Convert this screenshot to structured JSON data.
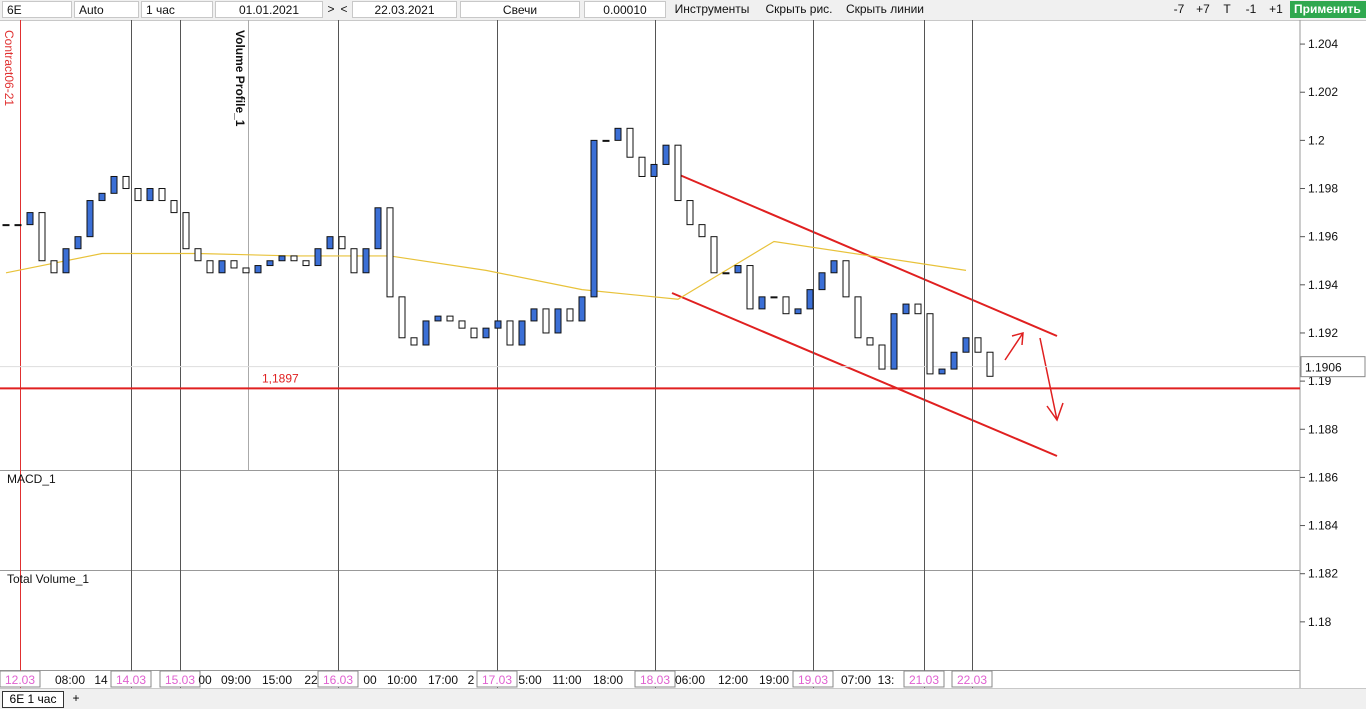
{
  "toolbar": {
    "symbol": "6E",
    "scale": "Auto",
    "timeframe": "1 час",
    "date_from": "01.01.2021",
    "date_to": "22.03.2021",
    "chart_style": "Свечи",
    "tick_size": "0.00010",
    "tools": "Инструменты",
    "hide_drawings": "Скрыть рис.",
    "hide_lines": "Скрыть линии",
    "minus7": "-7",
    "plus7": "+7",
    "t": "T",
    "minus1": "-1",
    "plus1": "+1",
    "apply": "Применить"
  },
  "tabs": {
    "active": "6E 1 час",
    "add": "+"
  },
  "panels": {
    "contract": "Contract06-21",
    "volume_profile": "Volume Profile_1",
    "macd": "MACD_1",
    "total_volume": "Total Volume_1"
  },
  "chart_data": {
    "type": "candlestick",
    "up_color": "#3b6fd6",
    "down_color": "#ffffff",
    "open": [
      1.1965,
      1.1965,
      1.1965,
      1.197,
      1.195,
      1.1945,
      1.1955,
      1.196,
      1.1975,
      1.1978,
      1.1985,
      1.198,
      1.1975,
      1.198,
      1.1975,
      1.197,
      1.1955,
      1.195,
      1.1945,
      1.195,
      1.1947,
      1.1945,
      1.1948,
      1.195,
      1.1952,
      1.195,
      1.1948,
      1.1955,
      1.196,
      1.1955,
      1.1945,
      1.1955,
      1.1972,
      1.1935,
      1.1918,
      1.1915,
      1.1925,
      1.1927,
      1.1925,
      1.1922,
      1.1918,
      1.1922,
      1.1925,
      1.1915,
      1.1925,
      1.193,
      1.192,
      1.193,
      1.1925,
      1.1935,
      1.2,
      1.2,
      1.2005,
      1.1993,
      1.1985,
      1.199,
      1.1998,
      1.1975,
      1.1965,
      1.196,
      1.1945,
      1.1945,
      1.1948,
      1.193,
      1.1935,
      1.1935,
      1.1928,
      1.193,
      1.1938,
      1.1945,
      1.195,
      1.1935,
      1.1918,
      1.1915,
      1.1905,
      1.1928,
      1.1932,
      1.1928,
      1.1903,
      1.1905,
      1.1912,
      1.1918,
      1.1912
    ],
    "close": [
      1.1965,
      1.1965,
      1.197,
      1.195,
      1.1945,
      1.1955,
      1.196,
      1.1975,
      1.1978,
      1.1985,
      1.198,
      1.1975,
      1.198,
      1.1975,
      1.197,
      1.1955,
      1.195,
      1.1945,
      1.195,
      1.1947,
      1.1945,
      1.1948,
      1.195,
      1.1952,
      1.195,
      1.1948,
      1.1955,
      1.196,
      1.1955,
      1.1945,
      1.1955,
      1.1972,
      1.1935,
      1.1918,
      1.1915,
      1.1925,
      1.1927,
      1.1925,
      1.1922,
      1.1918,
      1.1922,
      1.1925,
      1.1915,
      1.1925,
      1.193,
      1.192,
      1.193,
      1.1925,
      1.1935,
      1.2,
      1.2,
      1.2005,
      1.1993,
      1.1985,
      1.199,
      1.1998,
      1.1975,
      1.1965,
      1.196,
      1.1945,
      1.1945,
      1.1948,
      1.193,
      1.1935,
      1.1935,
      1.1928,
      1.193,
      1.1938,
      1.1945,
      1.195,
      1.1935,
      1.1918,
      1.1915,
      1.1905,
      1.1928,
      1.1932,
      1.1928,
      1.1903,
      1.1905,
      1.1912,
      1.1918,
      1.1912,
      1.1902
    ],
    "ma": {
      "color": "#e8c23a",
      "x": [
        0,
        8,
        16,
        24,
        32,
        40,
        48,
        56,
        64,
        72,
        80
      ],
      "values": [
        1.1945,
        1.1953,
        1.1953,
        1.1952,
        1.1952,
        1.1946,
        1.1938,
        1.1934,
        1.1958,
        1.1952,
        1.1946
      ]
    },
    "ylim": [
      1.178,
      1.205
    ],
    "yticks": [
      1.204,
      1.202,
      1.2,
      1.198,
      1.196,
      1.194,
      1.192,
      1.19,
      1.188,
      1.186,
      1.184,
      1.182,
      1.18
    ],
    "level": {
      "value": 1.1897,
      "label": "1,1897",
      "color": "#e02020"
    },
    "last_price": 1.1906,
    "time_labels": [
      {
        "text": "12.03",
        "date": true
      },
      {
        "text": "08:00",
        "date": false
      },
      {
        "text": "14",
        "date": false
      },
      {
        "text": "14.03",
        "date": true
      },
      {
        "text": "15.03",
        "date": true
      },
      {
        "text": "00",
        "date": false
      },
      {
        "text": "09:00",
        "date": false
      },
      {
        "text": "15:00",
        "date": false
      },
      {
        "text": "22",
        "date": false
      },
      {
        "text": "16.03",
        "date": true
      },
      {
        "text": "00",
        "date": false
      },
      {
        "text": "10:00",
        "date": false
      },
      {
        "text": "17:00",
        "date": false
      },
      {
        "text": "2",
        "date": false
      },
      {
        "text": "17.03",
        "date": true
      },
      {
        "text": "5:00",
        "date": false
      },
      {
        "text": "11:00",
        "date": false
      },
      {
        "text": "18:00",
        "date": false
      },
      {
        "text": "18.03",
        "date": true
      },
      {
        "text": "06:00",
        "date": false
      },
      {
        "text": "12:00",
        "date": false
      },
      {
        "text": "19:00",
        "date": false
      },
      {
        "text": "19.03",
        "date": true
      },
      {
        "text": "07:00",
        "date": false
      },
      {
        "text": "13:",
        "date": false
      },
      {
        "text": "21.03",
        "date": true
      },
      {
        "text": "22.03",
        "date": true
      }
    ]
  }
}
